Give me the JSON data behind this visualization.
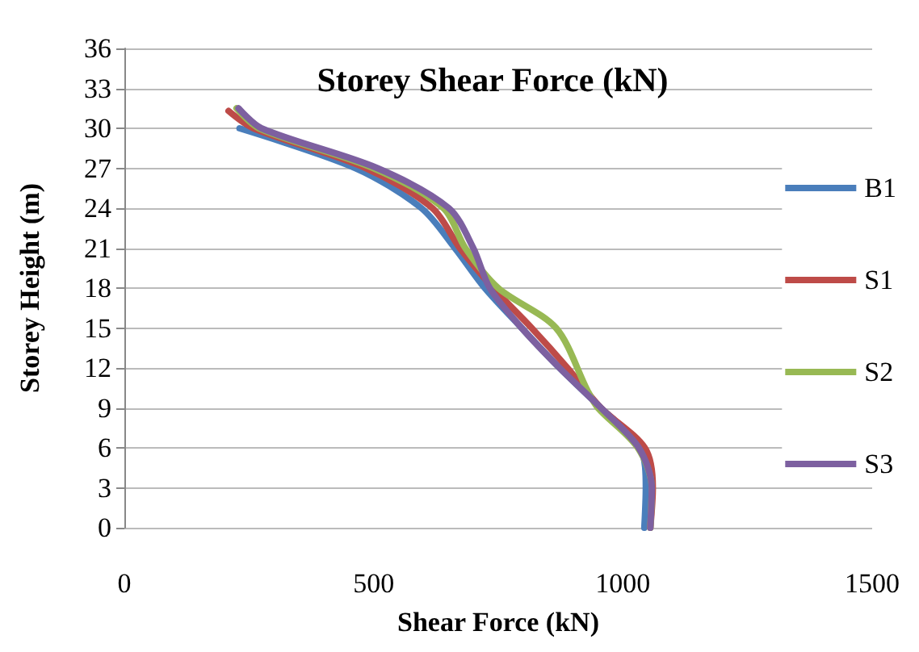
{
  "chart_data": {
    "type": "line",
    "title": "Storey Shear Force (kN)",
    "xlabel": "Shear Force (kN)",
    "ylabel": "Storey Height (m)",
    "xlim": [
      0,
      1500
    ],
    "xticks": [
      0,
      500,
      1000,
      1500
    ],
    "ylim": [
      0,
      36
    ],
    "yticks": [
      0,
      3,
      6,
      9,
      12,
      15,
      18,
      21,
      24,
      27,
      30,
      33,
      36
    ],
    "grid": "y",
    "legend": "right",
    "marker": "none",
    "line_style": "solid",
    "series": [
      {
        "name": "B1",
        "color": "#4a7ebb",
        "x": [
          1043,
          1046,
          1035,
          956,
          873,
          797,
          723,
          663,
          596,
          464,
          231
        ],
        "values": [
          0,
          3,
          6,
          9,
          12,
          15,
          18,
          21,
          24,
          27,
          30
        ]
      },
      {
        "name": "S1",
        "color": "#be4b48",
        "x": [
          1055,
          1060,
          1044,
          956,
          889,
          817,
          740,
          673,
          618,
          485,
          259,
          209
        ],
        "values": [
          0,
          3,
          6,
          9,
          12,
          15,
          18,
          21,
          24,
          27,
          30,
          31.3
        ]
      },
      {
        "name": "S2",
        "color": "#98b954",
        "x": [
          1055,
          1058,
          1030,
          950,
          929,
          866,
          750,
          684,
          640,
          500,
          270,
          225
        ],
        "values": [
          0,
          3,
          6,
          9,
          10.3,
          15,
          18,
          21,
          24,
          27,
          30,
          31.5
        ]
      },
      {
        "name": "S3",
        "color": "#7d60a0",
        "x": [
          1055,
          1058,
          1032,
          956,
          873,
          797,
          733,
          700,
          651,
          508,
          275,
          229
        ],
        "values": [
          0,
          3,
          6,
          9,
          12,
          15,
          18,
          21,
          24,
          27,
          30,
          31.5
        ]
      }
    ]
  }
}
